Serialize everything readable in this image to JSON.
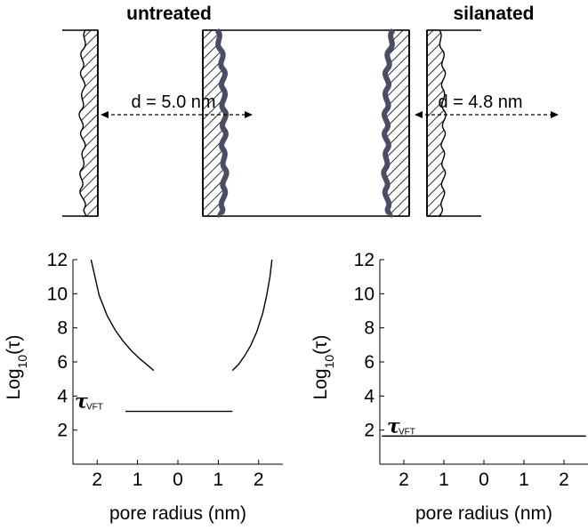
{
  "panels": {
    "left_title": "untreated",
    "right_title": "silanated",
    "left_distance": "d = 5.0 nm",
    "right_distance": "d = 4.8 nm"
  },
  "chart_data": [
    {
      "type": "line",
      "ylabel": "Log10(τ)",
      "xlabel": "pore radius (nm)",
      "xticks": [
        "2",
        "1",
        "0",
        "1",
        "2"
      ],
      "yticks": [
        "2",
        "4",
        "6",
        "8",
        "10",
        "12"
      ],
      "ylim": [
        0,
        12
      ],
      "xlim": [
        -2.6,
        2.6
      ],
      "vft_label": "τ",
      "vft_subscript": "VFT",
      "vft_level": 3.1,
      "vft_x_range": [
        -1.3,
        1.35
      ],
      "curves": [
        {
          "x": [
            -2.15,
            -1.95,
            -1.75,
            -1.55,
            -1.35,
            -1.15,
            -0.95,
            -0.75,
            -0.6
          ],
          "y": [
            12,
            9.9,
            8.7,
            7.85,
            7.2,
            6.65,
            6.2,
            5.8,
            5.5
          ]
        },
        {
          "x": [
            1.35,
            1.5,
            1.65,
            1.8,
            1.95,
            2.1,
            2.2,
            2.28,
            2.33
          ],
          "y": [
            5.5,
            5.85,
            6.35,
            6.95,
            7.75,
            8.85,
            9.9,
            11.0,
            12
          ]
        }
      ]
    },
    {
      "type": "line",
      "ylabel": "Log10(τ)",
      "xlabel": "pore radius (nm)",
      "xticks": [
        "2",
        "1",
        "0",
        "1",
        "2"
      ],
      "yticks": [
        "2",
        "4",
        "6",
        "8",
        "10",
        "12"
      ],
      "ylim": [
        0,
        12
      ],
      "xlim": [
        -2.6,
        2.6
      ],
      "vft_label": "τ",
      "vft_subscript": "VFT",
      "vft_level": 1.65,
      "vft_x_range": [
        -2.55,
        2.55
      ],
      "curves": []
    }
  ]
}
